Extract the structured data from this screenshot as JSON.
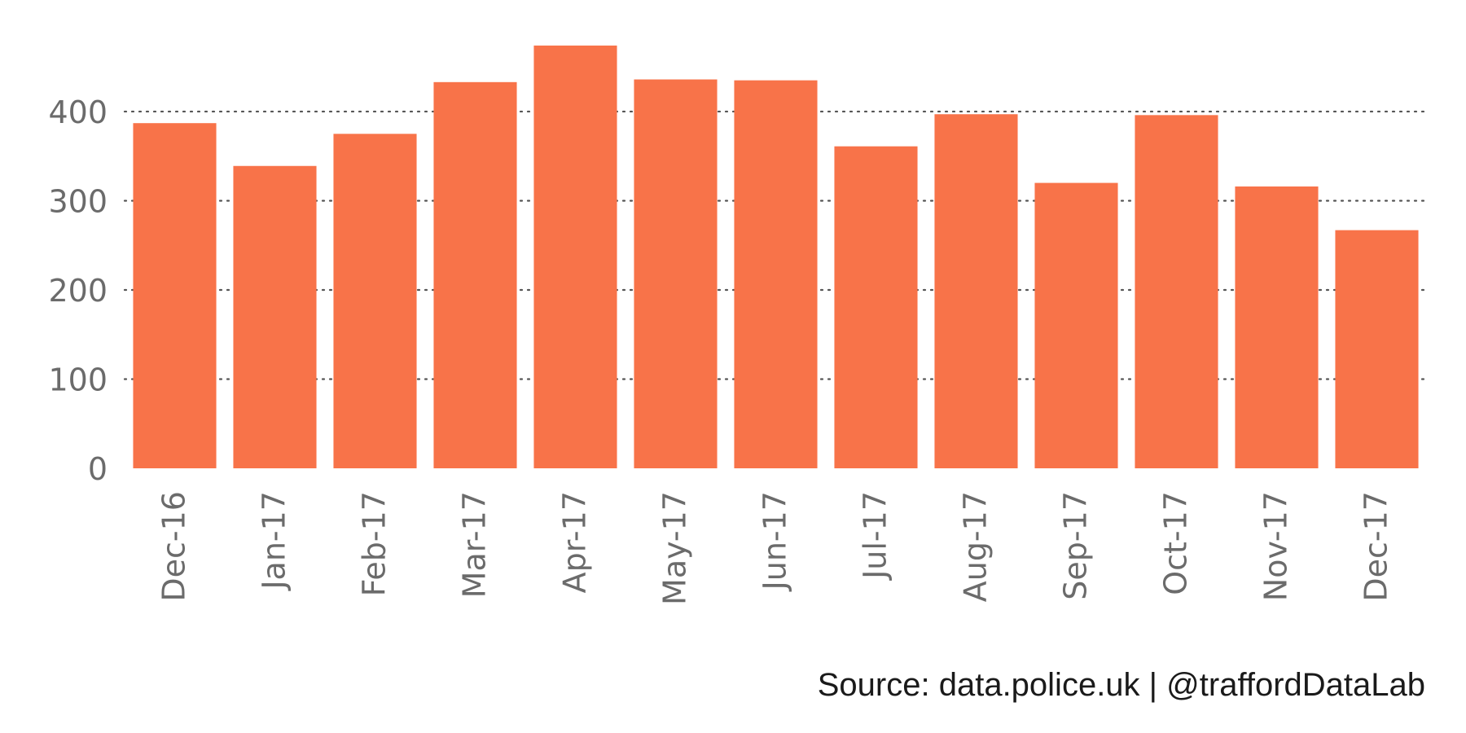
{
  "chart_data": {
    "type": "bar",
    "categories": [
      "Dec-16",
      "Jan-17",
      "Feb-17",
      "Mar-17",
      "Apr-17",
      "May-17",
      "Jun-17",
      "Jul-17",
      "Aug-17",
      "Sep-17",
      "Oct-17",
      "Nov-17",
      "Dec-17"
    ],
    "values": [
      387,
      339,
      375,
      433,
      474,
      436,
      435,
      361,
      397,
      320,
      396,
      316,
      267
    ],
    "y_ticks": [
      0,
      100,
      200,
      300,
      400
    ],
    "ylim": [
      0,
      480
    ],
    "grid": "horizontal dotted",
    "bar_color": "#f87349"
  },
  "caption": "Source: data.police.uk  |  @traffordDataLab"
}
